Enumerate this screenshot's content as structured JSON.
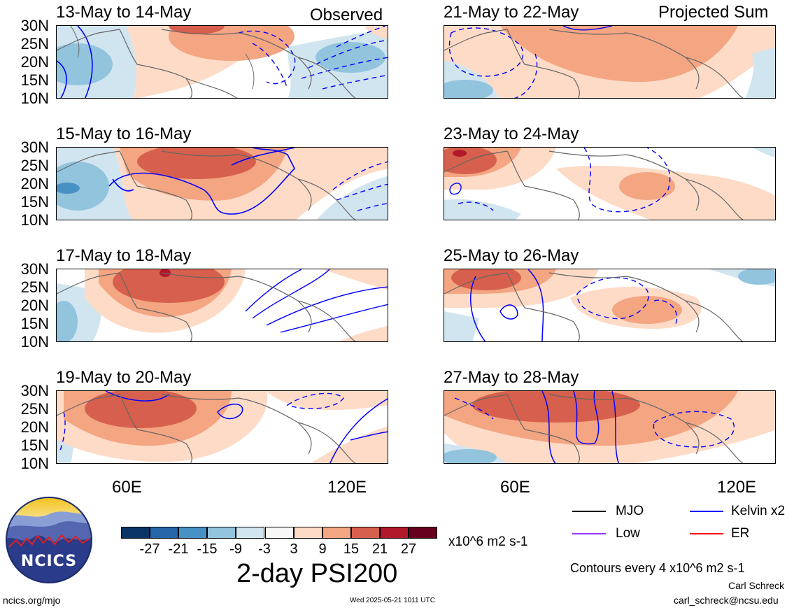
{
  "panels": [
    {
      "title": "13-May to 14-May",
      "corner": "Observed"
    },
    {
      "title": "15-May to 16-May",
      "corner": ""
    },
    {
      "title": "17-May to 18-May",
      "corner": ""
    },
    {
      "title": "19-May to 20-May",
      "corner": ""
    },
    {
      "title": "21-May to 22-May",
      "corner": "Projected Sum"
    },
    {
      "title": "23-May to 24-May",
      "corner": ""
    },
    {
      "title": "25-May to 26-May",
      "corner": ""
    },
    {
      "title": "27-May to 28-May",
      "corner": ""
    }
  ],
  "lat_labels": [
    "30N",
    "25N",
    "20N",
    "15N",
    "10N"
  ],
  "lon_labels": [
    "60E",
    "120E"
  ],
  "colorbar": {
    "colors": [
      "#0a3466",
      "#2466a8",
      "#4891c4",
      "#93c4de",
      "#d1e5f0",
      "#f7f7f7",
      "#fddbc7",
      "#f4a582",
      "#d6604d",
      "#b2182b",
      "#67001f"
    ],
    "tick_labels": [
      "-27",
      "-21",
      "-15",
      "-9",
      "-3",
      "3",
      "9",
      "15",
      "21",
      "27"
    ],
    "units": "x10^6 m2 s-1",
    "title": "2-day PSI200"
  },
  "legend": [
    {
      "label": "MJO",
      "color": "#000000"
    },
    {
      "label": "Kelvin x2",
      "color": "#0000ff"
    },
    {
      "label": "Low",
      "color": "#9933ff"
    },
    {
      "label": "ER",
      "color": "#ff0000"
    }
  ],
  "contour_note": "Contours every 4 x10^6 m2 s-1",
  "logo_text": "NCICS",
  "footer": {
    "left": "ncics.org/mjo",
    "center": "Wed 2025-05-21 1011 UTC",
    "author": "Carl Schreck",
    "email": "carl_schreck@ncsu.edu"
  }
}
